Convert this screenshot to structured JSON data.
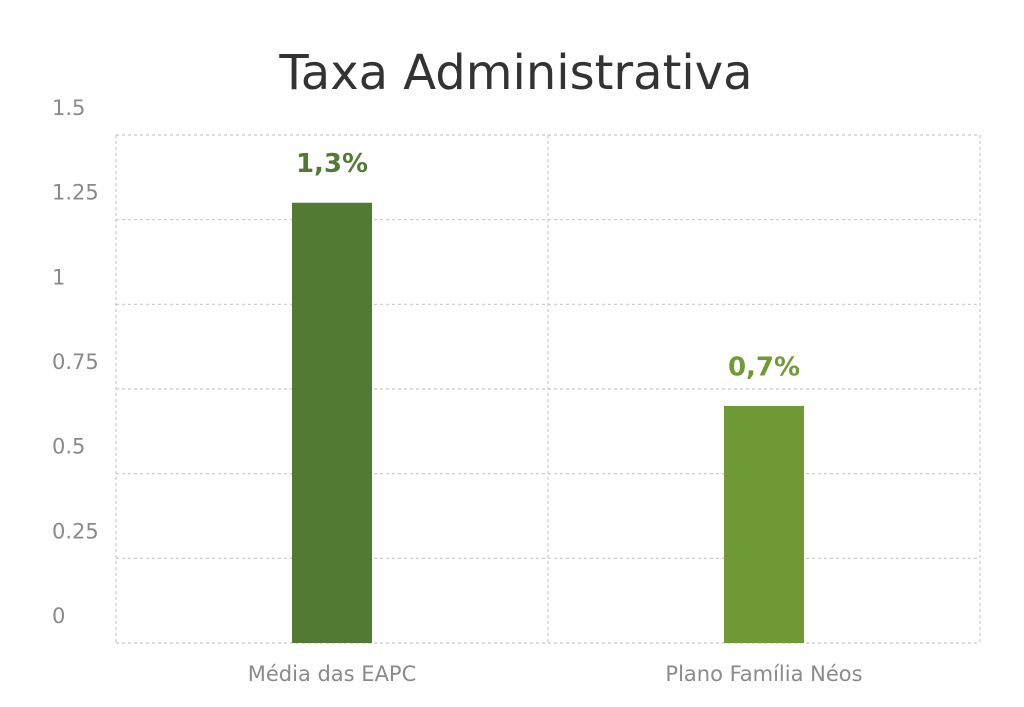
{
  "chart_data": {
    "type": "bar",
    "title": "Taxa Administrativa",
    "categories": [
      "Média das EAPC",
      "Plano Família Néos"
    ],
    "values": [
      1.3,
      0.7
    ],
    "value_labels": [
      "1,3%",
      "0,7%"
    ],
    "colors": [
      "#527a33",
      "#6f9a35"
    ],
    "ylim": [
      0,
      1.5
    ],
    "yticks": [
      0,
      0.25,
      0.5,
      0.75,
      1,
      1.25,
      1.5
    ],
    "grid": true
  }
}
